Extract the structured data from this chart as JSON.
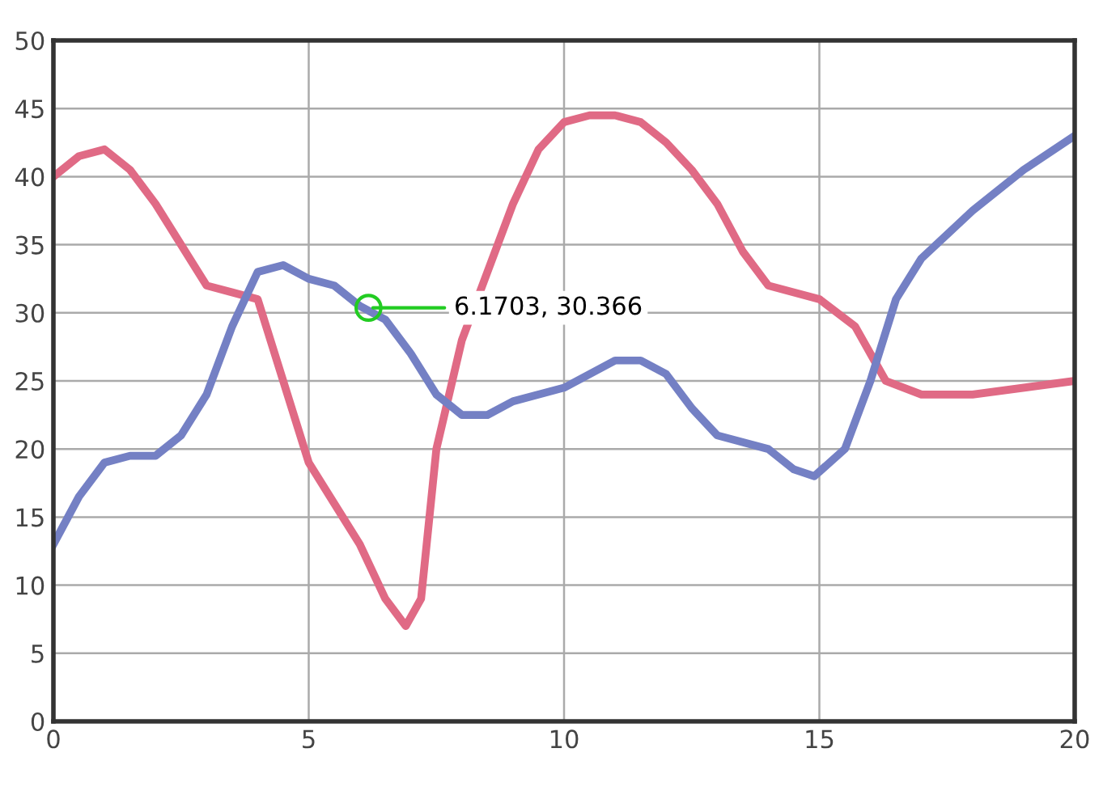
{
  "chart_data": {
    "type": "line",
    "series": [
      {
        "color": "#e06a85",
        "x": [
          0,
          0.5,
          1,
          1.5,
          2,
          2.5,
          3,
          3.5,
          4,
          4.5,
          5,
          5.5,
          6,
          6.5,
          6.9,
          7.2,
          7.5,
          8,
          8.5,
          9,
          9.5,
          10,
          10.5,
          11,
          11.5,
          12,
          12.5,
          13,
          13.5,
          14,
          15,
          15.7,
          16.3,
          17,
          18,
          20
        ],
        "values": [
          40,
          41.5,
          42,
          40.5,
          38,
          35,
          32,
          31.5,
          31,
          25,
          19,
          16,
          13,
          9,
          7,
          9,
          20,
          28,
          33,
          38,
          42,
          44,
          44.5,
          44.5,
          44,
          42.5,
          40.5,
          38,
          34.5,
          32,
          31,
          29,
          25,
          24,
          24,
          25
        ]
      },
      {
        "color": "#7480c4",
        "x": [
          0,
          0.5,
          1,
          1.5,
          2,
          2.5,
          3,
          3.5,
          4,
          4.5,
          5,
          5.5,
          6,
          6.5,
          7,
          7.5,
          8,
          8.5,
          9,
          10,
          11,
          11.5,
          12,
          12.5,
          13,
          14,
          14.5,
          14.9,
          15.5,
          16,
          16.5,
          17,
          18,
          19,
          20
        ],
        "values": [
          13,
          16.5,
          19,
          19.5,
          19.5,
          21,
          24,
          29,
          33,
          33.5,
          32.5,
          32,
          30.5,
          29.5,
          27,
          24,
          22.5,
          22.5,
          23.5,
          24.5,
          26.5,
          26.5,
          25.5,
          23,
          21,
          20,
          18.5,
          18,
          20,
          25,
          31,
          34,
          37.5,
          40.5,
          43
        ]
      }
    ],
    "annotations": [
      {
        "text": "6.1703, 30.366",
        "x": 6.1703,
        "y": 30.366
      }
    ],
    "xlim": [
      0,
      20
    ],
    "xticks": [
      0,
      5,
      10,
      15,
      20
    ],
    "ylim": [
      0,
      50
    ],
    "yticks": [
      0,
      5,
      10,
      15,
      20,
      25,
      30,
      35,
      40,
      45,
      50
    ],
    "grid": true,
    "marker": "none",
    "line_style": "solid",
    "legend": false
  }
}
